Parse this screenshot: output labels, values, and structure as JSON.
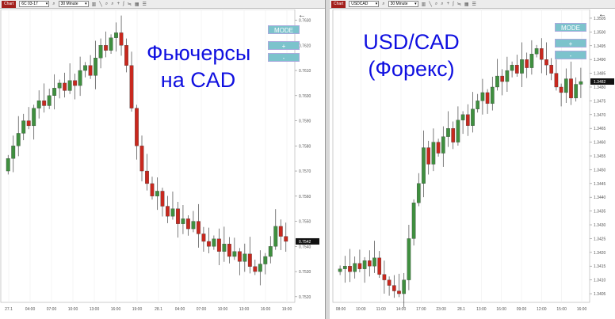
{
  "left": {
    "tab": "Chart",
    "symbol": "6C 03-17",
    "timeframe": "30 Minute",
    "overlay_line1": "Фьючерсы",
    "overlay_line2": "на CAD",
    "mode": "MODE",
    "plus": "+",
    "minus": "-",
    "price_label": "0.7542"
  },
  "right": {
    "tab": "Chart",
    "symbol": "USDCAD",
    "timeframe": "30 Minute",
    "overlay_line1": "USD/CAD",
    "overlay_line2": "(Форекс)",
    "mode": "MODE",
    "plus": "+",
    "minus": "-",
    "price_label": "1.3482"
  },
  "colors": {
    "up": "#3f8f3f",
    "down": "#c8281e",
    "accent": "#7cc3cc",
    "overlay": "#1010e0"
  },
  "chart_data": [
    {
      "type": "candlestick",
      "yticks": [
        "0.7630",
        "0.7620",
        "0.7610",
        "0.7600",
        "0.7590",
        "0.7580",
        "0.7570",
        "0.7560",
        "0.7550",
        "0.7540",
        "0.7530",
        "0.7520"
      ],
      "ylim": [
        0.7519,
        0.7633
      ],
      "xticks": [
        "27.1",
        "04:00",
        "07:00",
        "10:00",
        "13:00",
        "16:00",
        "19:00",
        "28.1",
        "04:00",
        "07:00",
        "10:00",
        "13:00",
        "16:00",
        "19:00"
      ],
      "closes": [
        0.7575,
        0.758,
        0.7585,
        0.759,
        0.7588,
        0.7595,
        0.7598,
        0.7596,
        0.76,
        0.7603,
        0.7605,
        0.7602,
        0.7606,
        0.7604,
        0.761,
        0.7612,
        0.7608,
        0.7615,
        0.762,
        0.7618,
        0.7623,
        0.7625,
        0.762,
        0.7612,
        0.7595,
        0.758,
        0.757,
        0.7565,
        0.756,
        0.7562,
        0.7556,
        0.7552,
        0.7555,
        0.7549,
        0.7551,
        0.7547,
        0.755,
        0.7545,
        0.7542,
        0.754,
        0.7543,
        0.7538,
        0.7541,
        0.7536,
        0.7538,
        0.7534,
        0.7537,
        0.7532,
        0.753,
        0.7533,
        0.7536,
        0.754,
        0.7548,
        0.7544,
        0.7542
      ]
    },
    {
      "type": "candlestick",
      "yticks": [
        "1.3505",
        "1.3500",
        "1.3495",
        "1.3490",
        "1.3485",
        "1.3480",
        "1.3475",
        "1.3470",
        "1.3465",
        "1.3460",
        "1.3455",
        "1.3450",
        "1.3445",
        "1.3440",
        "1.3435",
        "1.3430",
        "1.3425",
        "1.3420",
        "1.3415",
        "1.3410",
        "1.3405"
      ],
      "ylim": [
        1.3403,
        1.3507
      ],
      "xticks": [
        "08:00",
        "10:00",
        "11:00",
        "14:00",
        "17:00",
        "23:00",
        "28.1",
        "13:00",
        "16:00",
        "09:00",
        "12:00",
        "15:00",
        "16:00"
      ],
      "closes": [
        1.3414,
        1.3415,
        1.3413,
        1.3416,
        1.3414,
        1.3417,
        1.3415,
        1.3418,
        1.3412,
        1.341,
        1.3408,
        1.3406,
        1.3405,
        1.341,
        1.3425,
        1.3438,
        1.3445,
        1.3458,
        1.3452,
        1.346,
        1.3456,
        1.3462,
        1.3465,
        1.346,
        1.3468,
        1.347,
        1.3466,
        1.3472,
        1.3475,
        1.3478,
        1.3474,
        1.348,
        1.3484,
        1.3482,
        1.3486,
        1.3488,
        1.3485,
        1.349,
        1.3487,
        1.3492,
        1.3494,
        1.349,
        1.3488,
        1.3485,
        1.348,
        1.3478,
        1.3483,
        1.3476,
        1.3481,
        1.3482
      ]
    }
  ]
}
